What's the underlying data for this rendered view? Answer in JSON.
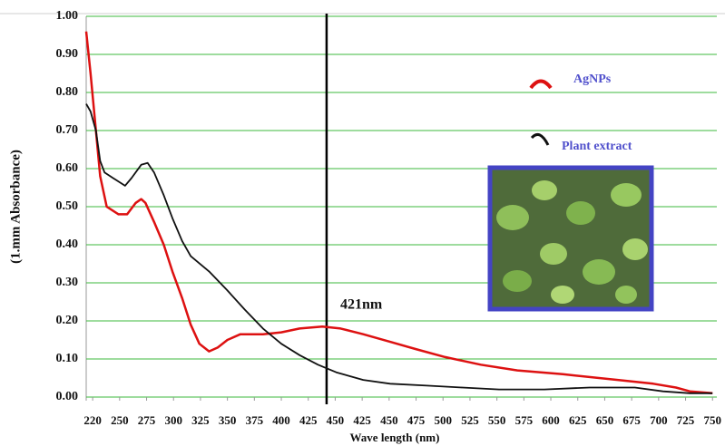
{
  "chart_data": {
    "type": "line",
    "y_label": "(1.mm Absorbance)",
    "x_label": "Wave length (nm)",
    "annotation": "421nm",
    "vline_x": 442,
    "grid": true,
    "xlim": [
      219,
      804
    ],
    "ylim": [
      0,
      1
    ],
    "xticks": [
      {
        "value": 225,
        "label": "220"
      },
      250,
      275,
      300,
      325,
      350,
      375,
      400,
      425,
      450,
      {
        "value": 475,
        "label": "425"
      },
      {
        "value": 500,
        "label": "450"
      },
      {
        "value": 525,
        "label": "475"
      },
      {
        "value": 550,
        "label": "500"
      },
      {
        "value": 575,
        "label": "525"
      },
      {
        "value": 600,
        "label": "550"
      },
      {
        "value": 625,
        "label": "575"
      },
      {
        "value": 650,
        "label": "600"
      },
      {
        "value": 675,
        "label": "625"
      },
      {
        "value": 700,
        "label": "650"
      },
      {
        "value": 725,
        "label": "675"
      },
      {
        "value": 750,
        "label": "700"
      },
      {
        "value": 775,
        "label": "725"
      },
      {
        "value": 800,
        "label": "750"
      }
    ],
    "yticks": [
      {
        "value": 0,
        "label": "0.00"
      },
      {
        "value": 0.1,
        "label": "0.10"
      },
      {
        "value": 0.2,
        "label": "0.20"
      },
      {
        "value": 0.3,
        "label": "0.30"
      },
      {
        "value": 0.4,
        "label": "0.40"
      },
      {
        "value": 0.5,
        "label": "0.50"
      },
      {
        "value": 0.6,
        "label": "0.60"
      },
      {
        "value": 0.7,
        "label": "0.70"
      },
      {
        "value": 0.8,
        "label": "0.80"
      },
      {
        "value": 0.9,
        "label": "0.90"
      },
      {
        "value": 1,
        "label": "1.00"
      }
    ],
    "series": [
      {
        "name": "AgNPs",
        "color": "#dd1111",
        "x": [
          219,
          223,
          228,
          232,
          238,
          249,
          257,
          265,
          270,
          274,
          282,
          291,
          299,
          308,
          316,
          324,
          333,
          341,
          350,
          362,
          383,
          400,
          417,
          438,
          455,
          476,
          501,
          526,
          552,
          585,
          619,
          661,
          712,
          745,
          766,
          779,
          800
        ],
        "values": [
          0.96,
          0.85,
          0.7,
          0.58,
          0.5,
          0.48,
          0.48,
          0.51,
          0.52,
          0.51,
          0.46,
          0.4,
          0.33,
          0.26,
          0.19,
          0.14,
          0.12,
          0.13,
          0.15,
          0.165,
          0.165,
          0.17,
          0.18,
          0.185,
          0.18,
          0.165,
          0.145,
          0.125,
          0.105,
          0.085,
          0.07,
          0.06,
          0.045,
          0.035,
          0.025,
          0.015,
          0.01
        ]
      },
      {
        "name": "Plant extract",
        "color": "#111111",
        "x": [
          219,
          223,
          228,
          232,
          236,
          244,
          255,
          261,
          270,
          276,
          282,
          291,
          299,
          308,
          316,
          333,
          350,
          366,
          383,
          400,
          417,
          434,
          451,
          476,
          501,
          535,
          568,
          602,
          644,
          686,
          728,
          754,
          779,
          800
        ],
        "values": [
          0.77,
          0.75,
          0.7,
          0.62,
          0.59,
          0.575,
          0.555,
          0.575,
          0.61,
          0.615,
          0.59,
          0.53,
          0.47,
          0.41,
          0.37,
          0.33,
          0.28,
          0.23,
          0.18,
          0.14,
          0.11,
          0.085,
          0.065,
          0.045,
          0.035,
          0.03,
          0.025,
          0.02,
          0.02,
          0.025,
          0.025,
          0.015,
          0.01,
          0.01
        ]
      }
    ]
  }
}
